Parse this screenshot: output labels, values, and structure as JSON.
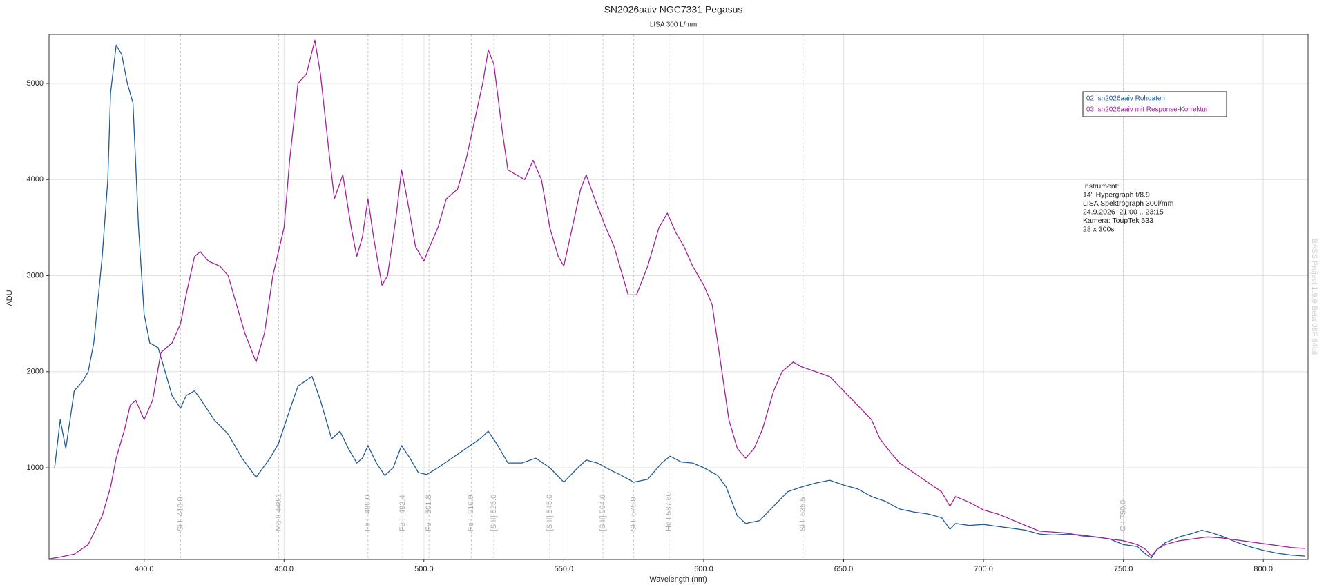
{
  "chart_data": {
    "type": "line",
    "title": "SN2026aaiv NGC7331 Pegasus",
    "subtitle": "LISA 300 L/mm",
    "x_label": "Wavelength (nm)",
    "y_label": "ADU",
    "xlim": [
      366,
      816
    ],
    "ylim": [
      45,
      5510
    ],
    "xticks": [
      {
        "value": 400,
        "label": "400.0"
      },
      {
        "value": 450,
        "label": "450.0"
      },
      {
        "value": 500,
        "label": "500.0"
      },
      {
        "value": 550,
        "label": "550.0"
      },
      {
        "value": 600,
        "label": "600.0"
      },
      {
        "value": 650,
        "label": "650.0"
      },
      {
        "value": 700,
        "label": "700.0"
      },
      {
        "value": 750,
        "label": "750.0"
      },
      {
        "value": 800,
        "label": "800.0"
      }
    ],
    "yticks": [
      1000,
      2000,
      3000,
      4000,
      5000
    ],
    "grid": true,
    "legend": "upper right",
    "series": [
      {
        "name": "02: sn2026aaiv Rohdaten",
        "color": "#1f5a96",
        "x": [
          368,
          370,
          372,
          375,
          378,
          380,
          382,
          385,
          387,
          388,
          390,
          392,
          394,
          396,
          398,
          400,
          402,
          405,
          407,
          410,
          413,
          415,
          418,
          420,
          425,
          430,
          435,
          440,
          445,
          448,
          452,
          455,
          460,
          463,
          467,
          470,
          473,
          476,
          478,
          480,
          483,
          486,
          489,
          492,
          495,
          498,
          501,
          505,
          510,
          515,
          520,
          523,
          526,
          530,
          535,
          540,
          545,
          550,
          555,
          558,
          562,
          567,
          570,
          575,
          580,
          585,
          588,
          592,
          596,
          600,
          605,
          608,
          612,
          615,
          620,
          625,
          630,
          635,
          640,
          645,
          650,
          655,
          660,
          665,
          670,
          675,
          680,
          685,
          688,
          690,
          695,
          700,
          705,
          710,
          715,
          720,
          725,
          730,
          735,
          740,
          745,
          750,
          755,
          758,
          760,
          762,
          765,
          770,
          775,
          778,
          782,
          785,
          790,
          795,
          800,
          805,
          810,
          815
        ],
        "values": [
          1000,
          1500,
          1200,
          1800,
          1900,
          2000,
          2300,
          3200,
          4000,
          4900,
          5400,
          5300,
          5000,
          4800,
          3500,
          2600,
          2300,
          2250,
          2050,
          1750,
          1620,
          1750,
          1800,
          1720,
          1500,
          1350,
          1100,
          900,
          1100,
          1250,
          1600,
          1850,
          1950,
          1700,
          1300,
          1380,
          1200,
          1050,
          1100,
          1230,
          1050,
          920,
          1000,
          1230,
          1100,
          950,
          930,
          1000,
          1100,
          1200,
          1300,
          1380,
          1250,
          1050,
          1050,
          1100,
          1000,
          850,
          1000,
          1080,
          1050,
          970,
          930,
          850,
          880,
          1050,
          1120,
          1060,
          1050,
          1000,
          920,
          800,
          500,
          420,
          450,
          600,
          750,
          800,
          840,
          870,
          820,
          780,
          700,
          650,
          570,
          540,
          520,
          480,
          360,
          420,
          400,
          410,
          390,
          370,
          350,
          310,
          300,
          310,
          300,
          280,
          260,
          200,
          180,
          100,
          60,
          150,
          220,
          280,
          320,
          350,
          320,
          290,
          230,
          180,
          140,
          110,
          90,
          80
        ]
      },
      {
        "name": "03: sn2026aaiv mit Response-Korrektur",
        "color": "#a0209a",
        "x": [
          366,
          370,
          375,
          380,
          385,
          388,
          390,
          393,
          395,
          397,
          400,
          403,
          406,
          410,
          413,
          415,
          418,
          420,
          423,
          427,
          430,
          433,
          436,
          440,
          443,
          446,
          450,
          452,
          455,
          458,
          461,
          463,
          466,
          468,
          471,
          474,
          476,
          478,
          480,
          482,
          485,
          487,
          490,
          492,
          494,
          497,
          500,
          502,
          505,
          508,
          512,
          515,
          518,
          521,
          523,
          525,
          528,
          530,
          533,
          536,
          539,
          542,
          545,
          548,
          550,
          553,
          556,
          558,
          561,
          565,
          568,
          570,
          573,
          576,
          580,
          584,
          587,
          590,
          593,
          596,
          600,
          603,
          606,
          609,
          612,
          615,
          618,
          621,
          625,
          628,
          632,
          635,
          640,
          645,
          650,
          655,
          660,
          663,
          667,
          670,
          675,
          680,
          685,
          688,
          690,
          695,
          700,
          705,
          710,
          715,
          720,
          725,
          730,
          735,
          740,
          745,
          750,
          755,
          758,
          760,
          762,
          765,
          770,
          775,
          780,
          785,
          790,
          795,
          800,
          805,
          810,
          815
        ],
        "values": [
          50,
          70,
          100,
          200,
          500,
          800,
          1100,
          1400,
          1650,
          1700,
          1500,
          1700,
          2200,
          2300,
          2500,
          2800,
          3200,
          3250,
          3150,
          3100,
          3000,
          2700,
          2400,
          2100,
          2400,
          3000,
          3500,
          4200,
          5000,
          5100,
          5450,
          5100,
          4300,
          3800,
          4050,
          3500,
          3200,
          3400,
          3800,
          3400,
          2900,
          3000,
          3600,
          4100,
          3800,
          3300,
          3150,
          3300,
          3500,
          3800,
          3900,
          4200,
          4600,
          5000,
          5350,
          5200,
          4500,
          4100,
          4050,
          4000,
          4200,
          4000,
          3500,
          3200,
          3100,
          3500,
          3900,
          4050,
          3800,
          3500,
          3300,
          3100,
          2800,
          2800,
          3100,
          3500,
          3650,
          3450,
          3300,
          3100,
          2900,
          2700,
          2100,
          1500,
          1200,
          1100,
          1200,
          1400,
          1800,
          2000,
          2100,
          2050,
          2000,
          1950,
          1800,
          1650,
          1500,
          1300,
          1150,
          1050,
          950,
          850,
          750,
          600,
          700,
          640,
          560,
          520,
          460,
          400,
          340,
          330,
          320,
          290,
          280,
          260,
          240,
          200,
          150,
          80,
          150,
          200,
          240,
          260,
          280,
          270,
          250,
          230,
          210,
          190,
          170,
          160
        ]
      }
    ],
    "annotations": [
      {
        "x": 413.0,
        "label": "Si II 413.0"
      },
      {
        "x": 448.1,
        "label": "Mg II 448.1"
      },
      {
        "x": 480.0,
        "label": "Fe II 480.0"
      },
      {
        "x": 492.4,
        "label": "Fe II 492.4"
      },
      {
        "x": 501.8,
        "label": "Fe II 501.8"
      },
      {
        "x": 516.9,
        "label": "Fe II 516.9"
      },
      {
        "x": 525.0,
        "label": "[S II] 525.0"
      },
      {
        "x": 545.0,
        "label": "[S II] 545.0"
      },
      {
        "x": 564.0,
        "label": "[S II] 564.0"
      },
      {
        "x": 575.0,
        "label": "Si II 575.0"
      },
      {
        "x": 587.6,
        "label": "He I 587.60"
      },
      {
        "x": 635.5,
        "label": "Si II 635.5"
      },
      {
        "x": 750.0,
        "label": "O I 750.0"
      }
    ],
    "info_text": [
      "Instrument:",
      "14'' Hypergraph f/8.9",
      "LISA Spektrograph 300l/mm",
      "24.9.2026  21:00 .. 23:15",
      "Kamera: ToupTek 533",
      "28 x 300s"
    ],
    "watermark": "BASS Project 1.9.9 Beta 08F 64bit"
  }
}
